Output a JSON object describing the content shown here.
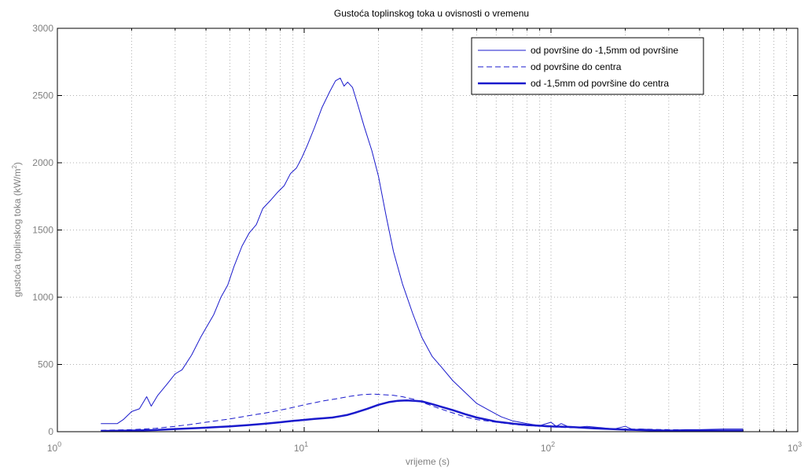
{
  "chart_data": {
    "type": "line",
    "title": "Gustoća toplinskog toka u ovisnosti o vremenu",
    "xlabel": "vrijeme (s)",
    "ylabel_main": "gustoća toplinskog toka (kW/m",
    "ylabel_sup": "2",
    "ylabel_close": ")",
    "xscale": "log",
    "xlim": [
      1,
      1000
    ],
    "ylim": [
      0,
      3000
    ],
    "grid": true,
    "legend_position": "top-right",
    "x_ticks": [
      {
        "value": 1,
        "base": "10",
        "exp": "0"
      },
      {
        "value": 10,
        "base": "10",
        "exp": "1"
      },
      {
        "value": 100,
        "base": "10",
        "exp": "2"
      },
      {
        "value": 1000,
        "base": "10",
        "exp": "3"
      }
    ],
    "y_ticks": [
      {
        "value": 0,
        "label": "0"
      },
      {
        "value": 500,
        "label": "500"
      },
      {
        "value": 1000,
        "label": "1000"
      },
      {
        "value": 1500,
        "label": "1500"
      },
      {
        "value": 2000,
        "label": "2000"
      },
      {
        "value": 2500,
        "label": "2500"
      },
      {
        "value": 3000,
        "label": "3000"
      }
    ],
    "series": [
      {
        "name": "od površine do -1,5mm od površine",
        "style": "solid",
        "width": 1,
        "color": "#1a1acc",
        "x": [
          1.5,
          1.75,
          1.85,
          2.0,
          2.15,
          2.3,
          2.4,
          2.55,
          2.8,
          3.0,
          3.2,
          3.5,
          3.8,
          4.0,
          4.3,
          4.6,
          4.9,
          5.2,
          5.6,
          6.0,
          6.4,
          6.8,
          7.3,
          7.8,
          8.3,
          8.8,
          9.3,
          9.8,
          10.3,
          11.0,
          11.8,
          12.7,
          13.4,
          14.0,
          14.5,
          15.0,
          15.7,
          16.5,
          17.5,
          18.8,
          20.0,
          21.5,
          23.0,
          25.0,
          27.5,
          30.0,
          33.0,
          36.0,
          40.0,
          45.0,
          50.0,
          56.0,
          63.0,
          70.0,
          80.0,
          90.0,
          100.0,
          105.0,
          110.0,
          120.0,
          140.0,
          160.0,
          180.0,
          200.0,
          215.0,
          230.0,
          260.0,
          300.0,
          350.0,
          400.0,
          500.0,
          600.0
        ],
        "y": [
          60,
          60,
          90,
          150,
          170,
          260,
          190,
          270,
          360,
          430,
          460,
          570,
          700,
          770,
          870,
          1000,
          1090,
          1230,
          1380,
          1480,
          1540,
          1660,
          1720,
          1780,
          1830,
          1920,
          1960,
          2040,
          2130,
          2260,
          2410,
          2530,
          2610,
          2630,
          2570,
          2600,
          2560,
          2430,
          2270,
          2090,
          1900,
          1600,
          1340,
          1100,
          880,
          700,
          560,
          480,
          380,
          290,
          210,
          160,
          110,
          80,
          60,
          45,
          70,
          40,
          60,
          30,
          40,
          30,
          20,
          40,
          15,
          20,
          15,
          10,
          15,
          15,
          20,
          20
        ]
      },
      {
        "name": "od površine do centra",
        "style": "dashed",
        "width": 1,
        "color": "#1a1acc",
        "x": [
          1.5,
          2.0,
          2.5,
          3.0,
          3.5,
          4.0,
          5.0,
          6.0,
          7.0,
          8.0,
          9.0,
          10.0,
          11.0,
          12.0,
          13.0,
          14.0,
          15.0,
          17.0,
          19.0,
          21.0,
          23.0,
          25.0,
          28.0,
          31.0,
          35.0,
          40.0,
          45.0,
          50.0,
          60.0,
          70.0,
          80.0,
          100.0,
          120.0,
          150.0,
          200.0,
          250.0,
          300.0,
          400.0,
          500.0,
          600.0
        ],
        "y": [
          10,
          15,
          25,
          40,
          55,
          70,
          95,
          120,
          140,
          160,
          180,
          200,
          215,
          230,
          240,
          250,
          260,
          275,
          280,
          275,
          270,
          260,
          240,
          210,
          175,
          140,
          110,
          90,
          70,
          55,
          45,
          35,
          30,
          25,
          20,
          18,
          15,
          12,
          10,
          10
        ]
      },
      {
        "name": "od -1,5mm od površine do centra",
        "style": "solid",
        "width": 2.5,
        "color": "#1a1acc",
        "x": [
          1.5,
          2.0,
          2.5,
          3.0,
          4.0,
          5.0,
          6.0,
          7.0,
          8.0,
          9.0,
          10.0,
          11.0,
          12.0,
          13.0,
          14.0,
          15.0,
          16.0,
          18.0,
          20.0,
          22.0,
          24.0,
          26.0,
          28.0,
          30.0,
          33.0,
          36.0,
          40.0,
          45.0,
          50.0,
          60.0,
          70.0,
          80.0,
          100.0,
          120.0,
          150.0,
          200.0,
          250.0,
          300.0,
          400.0,
          500.0,
          600.0
        ],
        "y": [
          5,
          8,
          12,
          20,
          30,
          40,
          50,
          60,
          70,
          80,
          88,
          95,
          100,
          105,
          115,
          125,
          140,
          170,
          200,
          220,
          230,
          232,
          230,
          225,
          205,
          185,
          160,
          130,
          105,
          75,
          60,
          50,
          40,
          35,
          25,
          15,
          10,
          8,
          8,
          8,
          8
        ]
      }
    ]
  }
}
